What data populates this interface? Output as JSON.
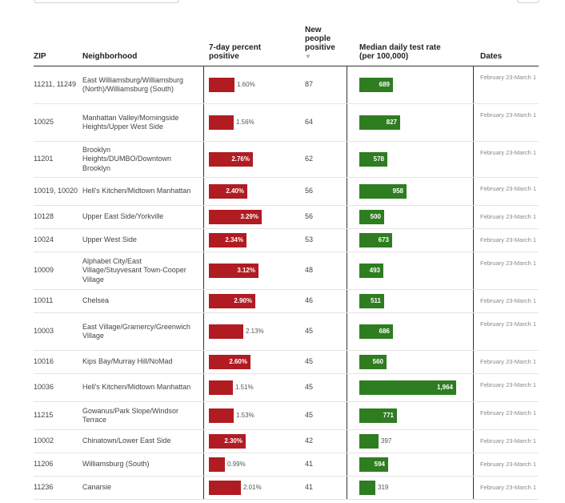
{
  "headers": {
    "zip": "ZIP",
    "neighborhood": "Neighborhood",
    "pct": "7-day percent positive",
    "new": "New people positive",
    "sort_indicator": "▼",
    "rate": "Median daily test rate (per 100,000)",
    "dates": "Dates"
  },
  "colors": {
    "pct_bar": "#b01c22",
    "rate_bar": "#2e7d21"
  },
  "rows": [
    {
      "zip": "11211, 11249",
      "neighborhood": "East Williamsburg/Williamsburg (North)/Williamsburg (South)",
      "pct": 1.6,
      "pct_label": "1.60%",
      "new": "87",
      "rate": 689,
      "rate_label": "689",
      "dates": "February 23-March 1"
    },
    {
      "zip": "10025",
      "neighborhood": "Manhattan Valley/Morningside Heights/Upper West Side",
      "pct": 1.56,
      "pct_label": "1.56%",
      "new": "64",
      "rate": 827,
      "rate_label": "827",
      "dates": "February 23-March 1"
    },
    {
      "zip": "11201",
      "neighborhood": "Brooklyn Heights/DUMBO/Downtown Brooklyn",
      "pct": 2.76,
      "pct_label": "2.76%",
      "new": "62",
      "rate": 578,
      "rate_label": "578",
      "dates": "February 23-March 1"
    },
    {
      "zip": "10019, 10020",
      "neighborhood": "Hell's Kitchen/Midtown Manhattan",
      "pct": 2.4,
      "pct_label": "2.40%",
      "new": "56",
      "rate": 958,
      "rate_label": "958",
      "dates": "February 23-March 1"
    },
    {
      "zip": "10128",
      "neighborhood": "Upper East Side/Yorkville",
      "pct": 3.29,
      "pct_label": "3.29%",
      "new": "56",
      "rate": 500,
      "rate_label": "500",
      "dates": "February 23-March 1"
    },
    {
      "zip": "10024",
      "neighborhood": "Upper West Side",
      "pct": 2.34,
      "pct_label": "2.34%",
      "new": "53",
      "rate": 673,
      "rate_label": "673",
      "dates": "February 23-March 1"
    },
    {
      "zip": "10009",
      "neighborhood": "Alphabet City/East Village/Stuyvesant Town-Cooper Village",
      "pct": 3.12,
      "pct_label": "3.12%",
      "new": "48",
      "rate": 493,
      "rate_label": "493",
      "dates": "February 23-March 1"
    },
    {
      "zip": "10011",
      "neighborhood": "Chelsea",
      "pct": 2.9,
      "pct_label": "2.90%",
      "new": "46",
      "rate": 511,
      "rate_label": "511",
      "dates": "February 23-March 1"
    },
    {
      "zip": "10003",
      "neighborhood": "East Village/Gramercy/Greenwich Village",
      "pct": 2.13,
      "pct_label": "2.13%",
      "new": "45",
      "rate": 686,
      "rate_label": "686",
      "dates": "February 23-March 1"
    },
    {
      "zip": "10016",
      "neighborhood": "Kips Bay/Murray Hill/NoMad",
      "pct": 2.6,
      "pct_label": "2.60%",
      "new": "45",
      "rate": 560,
      "rate_label": "560",
      "dates": "February 23-March 1"
    },
    {
      "zip": "10036",
      "neighborhood": "Hell's Kitchen/Midtown Manhattan",
      "pct": 1.51,
      "pct_label": "1.51%",
      "new": "45",
      "rate": 1964,
      "rate_label": "1,964",
      "dates": "February 23-March 1"
    },
    {
      "zip": "11215",
      "neighborhood": "Gowanus/Park Slope/Windsor Terrace",
      "pct": 1.53,
      "pct_label": "1.53%",
      "new": "45",
      "rate": 771,
      "rate_label": "771",
      "dates": "February 23-March 1"
    },
    {
      "zip": "10002",
      "neighborhood": "Chinatown/Lower East Side",
      "pct": 2.3,
      "pct_label": "2.30%",
      "new": "42",
      "rate": 397,
      "rate_label": "397",
      "dates": "February 23-March 1"
    },
    {
      "zip": "11206",
      "neighborhood": "Williamsburg (South)",
      "pct": 0.99,
      "pct_label": "0.99%",
      "new": "41",
      "rate": 594,
      "rate_label": "594",
      "dates": "February 23-March 1"
    },
    {
      "zip": "11236",
      "neighborhood": "Canarsie",
      "pct": 2.01,
      "pct_label": "2.01%",
      "new": "41",
      "rate": 319,
      "rate_label": "319",
      "dates": "February 23-March 1"
    }
  ]
}
